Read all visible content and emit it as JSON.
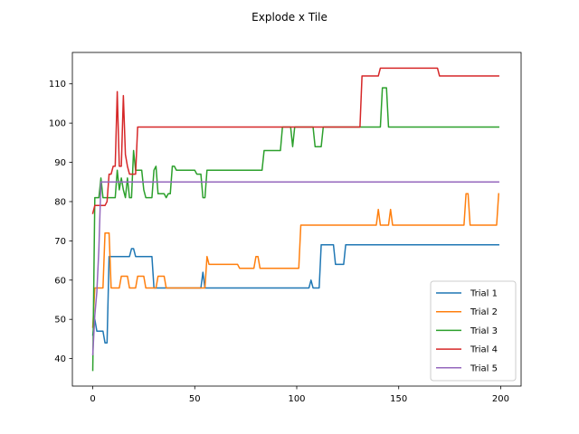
{
  "chart_data": {
    "type": "line",
    "title": "Explode x Tile",
    "xlabel": "",
    "ylabel": "",
    "xlim": [
      -10,
      210
    ],
    "ylim": [
      33,
      118
    ],
    "xticks": [
      0,
      50,
      100,
      150,
      200
    ],
    "yticks": [
      40,
      50,
      60,
      70,
      80,
      90,
      100,
      110
    ],
    "grid": false,
    "legend_position": "lower-right",
    "series": [
      {
        "name": "Trial 1",
        "color": "#1f77b4",
        "points": [
          [
            0,
            46
          ],
          [
            1,
            50
          ],
          [
            2,
            47
          ],
          [
            5,
            47
          ],
          [
            6,
            44
          ],
          [
            7,
            44
          ],
          [
            8,
            66
          ],
          [
            18,
            66
          ],
          [
            19,
            68
          ],
          [
            20,
            68
          ],
          [
            21,
            66
          ],
          [
            29,
            66
          ],
          [
            30,
            58
          ],
          [
            53,
            58
          ],
          [
            54,
            62
          ],
          [
            55,
            58
          ],
          [
            106,
            58
          ],
          [
            107,
            60
          ],
          [
            108,
            58
          ],
          [
            111,
            58
          ],
          [
            112,
            69
          ],
          [
            118,
            69
          ],
          [
            119,
            64
          ],
          [
            123,
            64
          ],
          [
            124,
            69
          ],
          [
            199,
            69
          ]
        ]
      },
      {
        "name": "Trial 2",
        "color": "#ff7f0e",
        "points": [
          [
            0,
            48
          ],
          [
            1,
            58
          ],
          [
            5,
            58
          ],
          [
            6,
            72
          ],
          [
            8,
            72
          ],
          [
            9,
            58
          ],
          [
            13,
            58
          ],
          [
            14,
            61
          ],
          [
            17,
            61
          ],
          [
            18,
            58
          ],
          [
            21,
            58
          ],
          [
            22,
            61
          ],
          [
            25,
            61
          ],
          [
            26,
            58
          ],
          [
            31,
            58
          ],
          [
            32,
            61
          ],
          [
            35,
            61
          ],
          [
            36,
            58
          ],
          [
            55,
            58
          ],
          [
            56,
            66
          ],
          [
            57,
            64
          ],
          [
            71,
            64
          ],
          [
            72,
            63
          ],
          [
            79,
            63
          ],
          [
            80,
            66
          ],
          [
            81,
            66
          ],
          [
            82,
            63
          ],
          [
            101,
            63
          ],
          [
            102,
            74
          ],
          [
            139,
            74
          ],
          [
            140,
            78
          ],
          [
            141,
            74
          ],
          [
            145,
            74
          ],
          [
            146,
            78
          ],
          [
            147,
            74
          ],
          [
            182,
            74
          ],
          [
            183,
            82
          ],
          [
            184,
            82
          ],
          [
            185,
            74
          ],
          [
            198,
            74
          ],
          [
            199,
            82
          ]
        ]
      },
      {
        "name": "Trial 3",
        "color": "#2ca02c",
        "points": [
          [
            0,
            37
          ],
          [
            1,
            81
          ],
          [
            3,
            81
          ],
          [
            4,
            86
          ],
          [
            5,
            81
          ],
          [
            11,
            81
          ],
          [
            12,
            88
          ],
          [
            13,
            83
          ],
          [
            14,
            86
          ],
          [
            15,
            83
          ],
          [
            16,
            81
          ],
          [
            17,
            86
          ],
          [
            18,
            81
          ],
          [
            19,
            81
          ],
          [
            20,
            93
          ],
          [
            21,
            88
          ],
          [
            24,
            88
          ],
          [
            25,
            83
          ],
          [
            26,
            81
          ],
          [
            29,
            81
          ],
          [
            30,
            88
          ],
          [
            31,
            89
          ],
          [
            32,
            82
          ],
          [
            35,
            82
          ],
          [
            36,
            81
          ],
          [
            37,
            82
          ],
          [
            38,
            82
          ],
          [
            39,
            89
          ],
          [
            40,
            89
          ],
          [
            41,
            88
          ],
          [
            50,
            88
          ],
          [
            51,
            87
          ],
          [
            53,
            87
          ],
          [
            54,
            81
          ],
          [
            55,
            81
          ],
          [
            56,
            88
          ],
          [
            83,
            88
          ],
          [
            84,
            93
          ],
          [
            92,
            93
          ],
          [
            93,
            99
          ],
          [
            97,
            99
          ],
          [
            98,
            94
          ],
          [
            99,
            99
          ],
          [
            106,
            99
          ],
          [
            107,
            99
          ],
          [
            108,
            99
          ],
          [
            109,
            94
          ],
          [
            112,
            94
          ],
          [
            113,
            99
          ],
          [
            141,
            99
          ],
          [
            142,
            109
          ],
          [
            144,
            109
          ],
          [
            145,
            99
          ],
          [
            199,
            99
          ]
        ]
      },
      {
        "name": "Trial 4",
        "color": "#d62728",
        "points": [
          [
            0,
            77
          ],
          [
            1,
            79
          ],
          [
            6,
            79
          ],
          [
            7,
            80
          ],
          [
            8,
            87
          ],
          [
            9,
            87
          ],
          [
            10,
            89
          ],
          [
            11,
            89
          ],
          [
            12,
            108
          ],
          [
            13,
            89
          ],
          [
            14,
            89
          ],
          [
            15,
            107
          ],
          [
            16,
            92
          ],
          [
            17,
            89
          ],
          [
            18,
            87
          ],
          [
            21,
            87
          ],
          [
            22,
            99
          ],
          [
            131,
            99
          ],
          [
            132,
            112
          ],
          [
            140,
            112
          ],
          [
            141,
            114
          ],
          [
            169,
            114
          ],
          [
            170,
            112
          ],
          [
            199,
            112
          ]
        ]
      },
      {
        "name": "Trial 5",
        "color": "#9467bd",
        "points": [
          [
            0,
            41
          ],
          [
            1,
            51
          ],
          [
            2,
            57
          ],
          [
            3,
            68
          ],
          [
            4,
            85
          ],
          [
            199,
            85
          ]
        ]
      }
    ]
  }
}
